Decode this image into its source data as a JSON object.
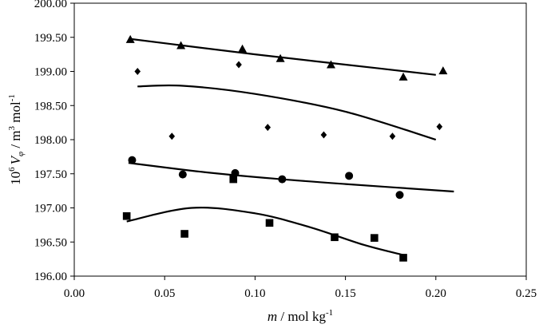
{
  "chart_data": {
    "type": "scatter",
    "title": "",
    "xlabel": {
      "var": "m",
      "rest": " / mol kg",
      "sup": "-1"
    },
    "ylabel": {
      "pre": "10",
      "pre_sup": "6",
      "var": "V",
      "sub": "φ",
      "mid": " / m",
      "mid_sup": "3",
      "rest": " mol",
      "rest_sup": "-1"
    },
    "xlim": [
      0.0,
      0.25
    ],
    "ylim": [
      196.0,
      200.0
    ],
    "xticks": [
      "0.00",
      "0.05",
      "0.10",
      "0.15",
      "0.20",
      "0.25"
    ],
    "yticks": [
      "196.00",
      "196.50",
      "197.00",
      "197.50",
      "198.00",
      "198.50",
      "199.00",
      "199.50",
      "200.00"
    ],
    "grid": false,
    "legend": "none",
    "series": [
      {
        "marker": "triangle",
        "points": [
          [
            0.031,
            199.47
          ],
          [
            0.059,
            199.38
          ],
          [
            0.093,
            199.33
          ],
          [
            0.114,
            199.19
          ],
          [
            0.142,
            199.1
          ],
          [
            0.182,
            198.92
          ],
          [
            0.204,
            199.01
          ]
        ],
        "fit": [
          [
            0.03,
            199.48
          ],
          [
            0.06,
            199.38
          ],
          [
            0.1,
            199.25
          ],
          [
            0.15,
            199.1
          ],
          [
            0.2,
            198.95
          ]
        ]
      },
      {
        "marker": "diamond",
        "points": [
          [
            0.035,
            199.0
          ],
          [
            0.054,
            198.05
          ],
          [
            0.091,
            199.1
          ],
          [
            0.107,
            198.18
          ],
          [
            0.138,
            198.07
          ],
          [
            0.176,
            198.05
          ],
          [
            0.202,
            198.19
          ]
        ],
        "fit": [
          [
            0.035,
            198.78
          ],
          [
            0.06,
            198.79
          ],
          [
            0.1,
            198.67
          ],
          [
            0.15,
            198.41
          ],
          [
            0.2,
            198.0
          ]
        ]
      },
      {
        "marker": "circle",
        "points": [
          [
            0.032,
            197.7
          ],
          [
            0.06,
            197.49
          ],
          [
            0.089,
            197.51
          ],
          [
            0.115,
            197.42
          ],
          [
            0.152,
            197.47
          ],
          [
            0.18,
            197.19
          ]
        ],
        "fit": [
          [
            0.03,
            197.66
          ],
          [
            0.07,
            197.53
          ],
          [
            0.11,
            197.43
          ],
          [
            0.15,
            197.35
          ],
          [
            0.21,
            197.24
          ]
        ]
      },
      {
        "marker": "square",
        "points": [
          [
            0.029,
            196.88
          ],
          [
            0.061,
            196.62
          ],
          [
            0.088,
            197.42
          ],
          [
            0.108,
            196.78
          ],
          [
            0.144,
            196.57
          ],
          [
            0.166,
            196.56
          ],
          [
            0.182,
            196.27
          ]
        ],
        "fit": [
          [
            0.029,
            196.8
          ],
          [
            0.065,
            197.0
          ],
          [
            0.1,
            196.92
          ],
          [
            0.13,
            196.72
          ],
          [
            0.16,
            196.46
          ],
          [
            0.182,
            196.31
          ]
        ]
      }
    ]
  }
}
